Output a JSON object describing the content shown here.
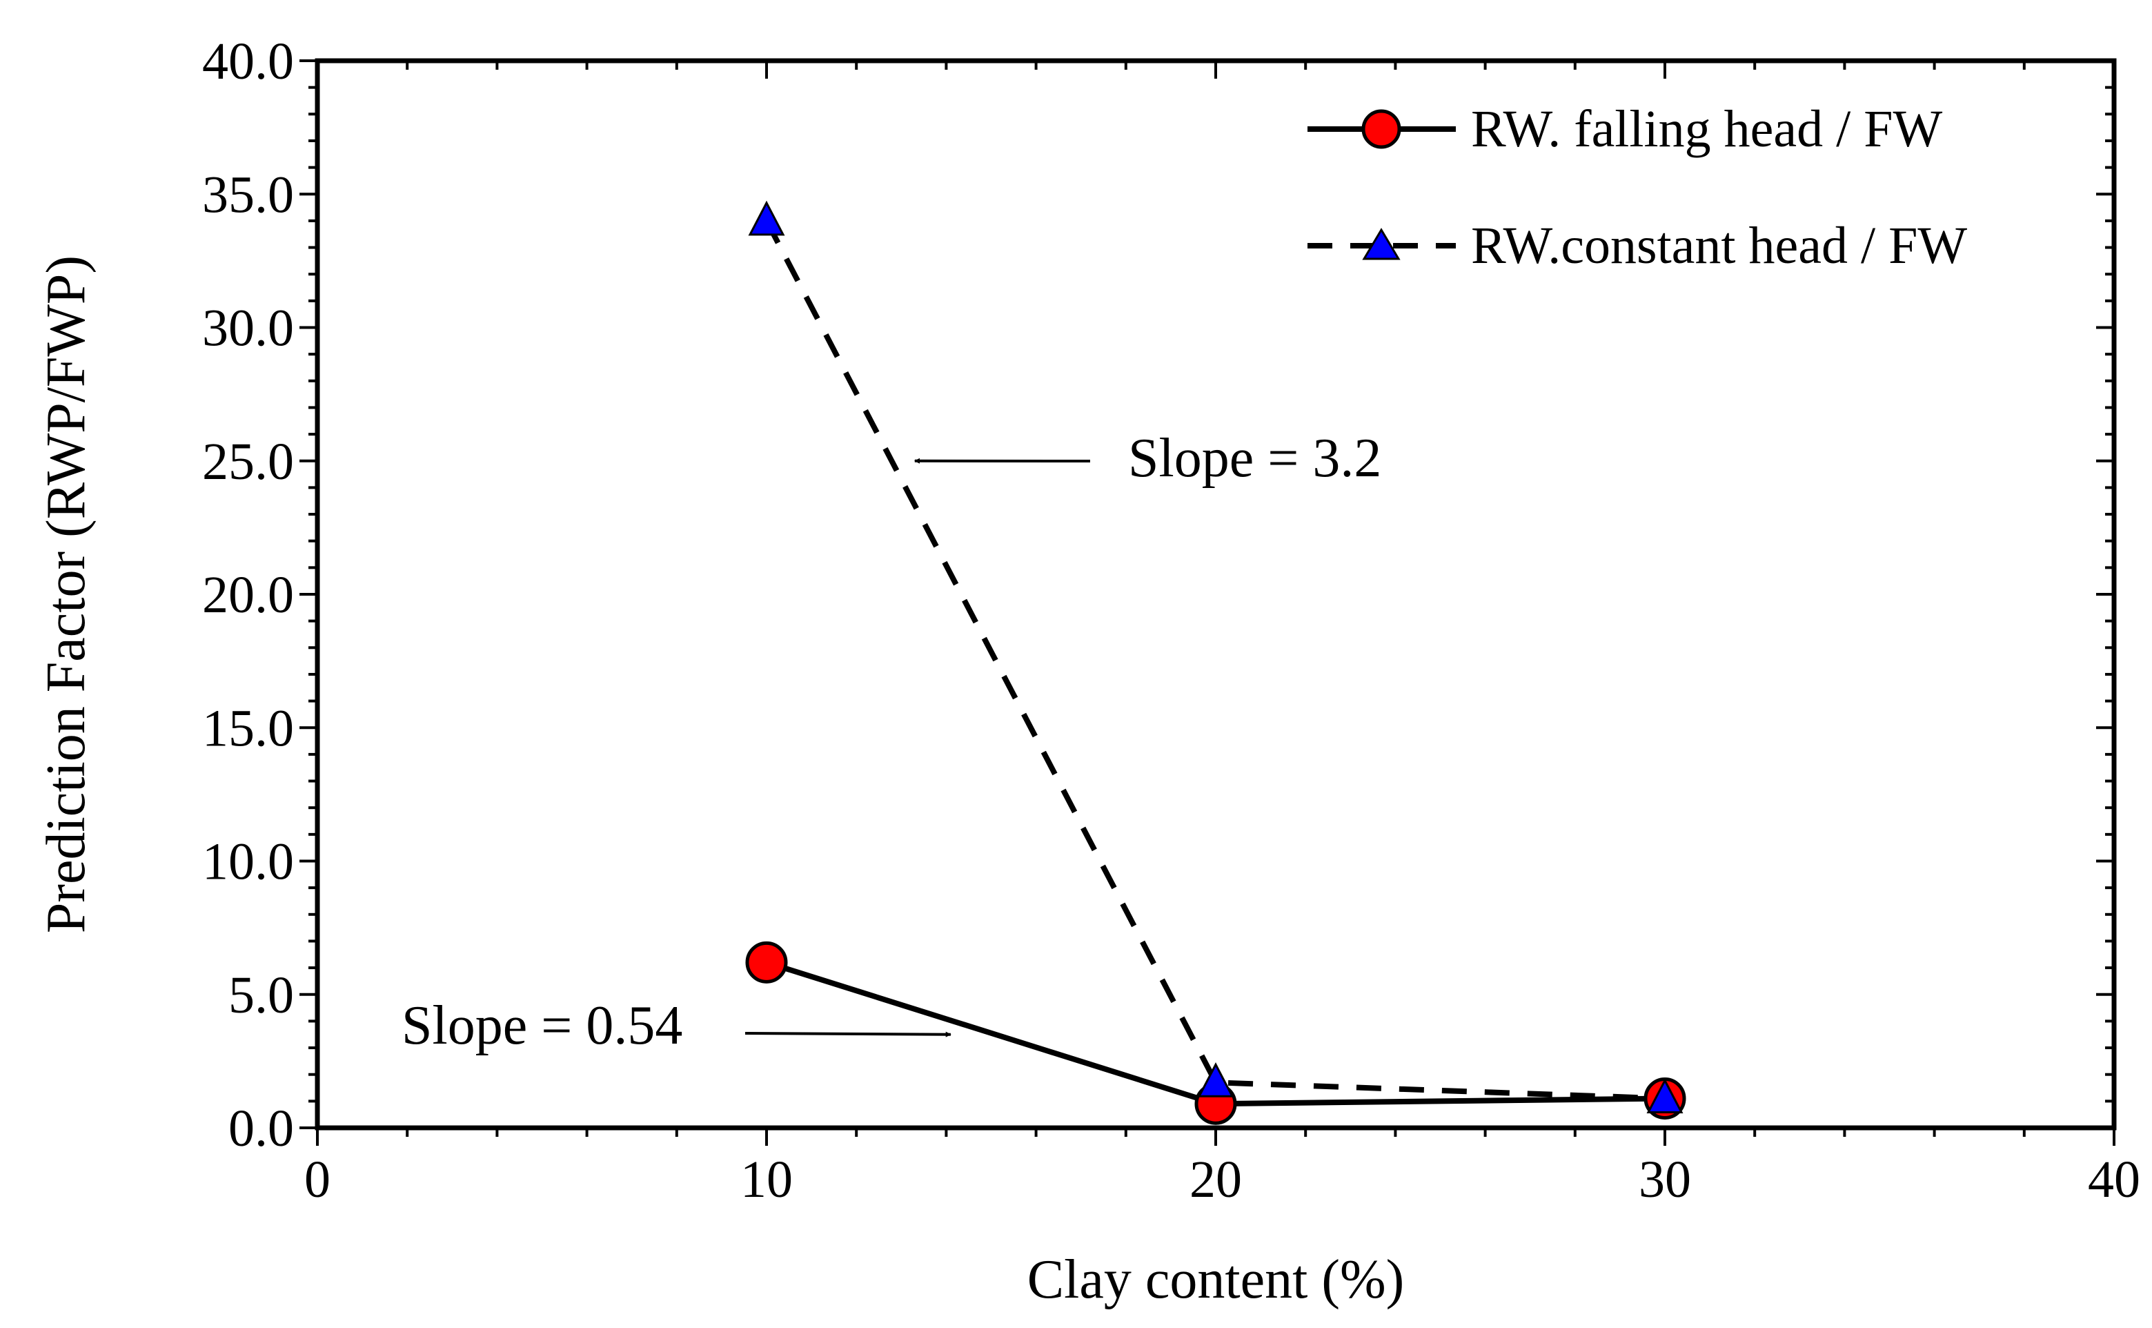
{
  "chart_data": {
    "type": "line",
    "xlabel": "Clay content (%)",
    "ylabel": "Prediction Factor  (RWP/FWP)",
    "xlim": [
      0,
      40
    ],
    "ylim": [
      0,
      40
    ],
    "x_ticks": [
      0,
      10,
      20,
      30,
      40
    ],
    "y_ticks": [
      0.0,
      5.0,
      10.0,
      15.0,
      20.0,
      25.0,
      30.0,
      35.0,
      40.0
    ],
    "y_tick_labels": [
      "0.0",
      "5.0",
      "10.0",
      "15.0",
      "20.0",
      "25.0",
      "30.0",
      "35.0",
      "40.0"
    ],
    "grid": false,
    "legend_position": "top-right",
    "series": [
      {
        "name": "RW. falling head / FW",
        "x": [
          10,
          20,
          30
        ],
        "y": [
          6.2,
          0.9,
          1.1
        ],
        "line_style": "solid",
        "marker": "circle",
        "marker_color": "#ff0000"
      },
      {
        "name": "RW.constant head / FW",
        "x": [
          10,
          20,
          30
        ],
        "y": [
          34.0,
          1.7,
          1.1
        ],
        "line_style": "dashed",
        "marker": "triangle",
        "marker_color": "#0000ff"
      }
    ],
    "annotations": [
      {
        "text": "Slope = 3.2",
        "arrow_to": {
          "x": 13.3,
          "y": 25.0
        }
      },
      {
        "text": "Slope = 0.54",
        "arrow_to": {
          "x": 14.1,
          "y": 3.5
        }
      }
    ]
  }
}
